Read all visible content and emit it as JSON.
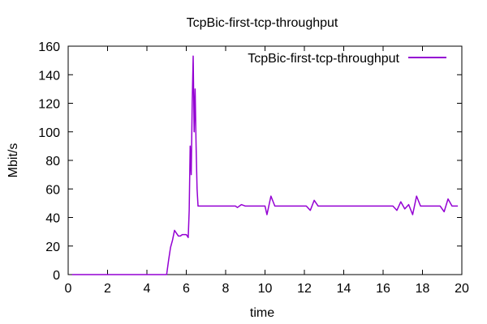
{
  "chart_data": {
    "type": "line",
    "title": "TcpBic-first-tcp-throughput",
    "xlabel": "time",
    "ylabel": "Mbit/s",
    "xlim": [
      0,
      20
    ],
    "ylim": [
      0,
      160
    ],
    "x_ticks": [
      0,
      2,
      4,
      6,
      8,
      10,
      12,
      14,
      16,
      18,
      20
    ],
    "y_ticks": [
      0,
      20,
      40,
      60,
      80,
      100,
      120,
      140,
      160
    ],
    "grid": false,
    "legend": {
      "placement": "top-right"
    },
    "series": [
      {
        "name": "TcpBic-first-tcp-throughput",
        "color": "#9400d3",
        "x": [
          0.2,
          0.5,
          1,
          2,
          3,
          4,
          4.8,
          5.0,
          5.1,
          5.2,
          5.3,
          5.4,
          5.5,
          5.6,
          5.7,
          5.8,
          5.9,
          6.0,
          6.1,
          6.15,
          6.2,
          6.25,
          6.3,
          6.35,
          6.4,
          6.45,
          6.5,
          6.55,
          6.6,
          6.7,
          7.0,
          7.5,
          8.0,
          8.5,
          8.6,
          8.8,
          9.0,
          9.5,
          10.0,
          10.1,
          10.3,
          10.5,
          11.0,
          11.3,
          11.5,
          11.7,
          11.9,
          12.1,
          12.3,
          12.5,
          12.7,
          12.9,
          13.5,
          14,
          15,
          16,
          16.5,
          16.7,
          16.9,
          17.1,
          17.3,
          17.5,
          17.7,
          17.9,
          18.5,
          18.9,
          19.1,
          19.3,
          19.5,
          19.8
        ],
        "y": [
          0,
          0,
          0,
          0,
          0,
          0,
          0,
          0,
          10,
          19,
          24,
          31,
          29,
          27,
          27,
          28,
          28,
          28,
          26,
          45,
          90,
          70,
          120,
          153,
          100,
          130,
          90,
          60,
          48,
          48,
          48,
          48,
          48,
          48,
          47,
          49,
          48,
          48,
          48,
          42,
          55,
          48,
          48,
          48,
          48,
          48,
          48,
          48,
          45,
          52,
          48,
          48,
          48,
          48,
          48,
          48,
          48,
          45,
          51,
          46,
          49,
          42,
          55,
          48,
          48,
          48,
          44,
          53,
          48,
          48
        ]
      }
    ]
  }
}
